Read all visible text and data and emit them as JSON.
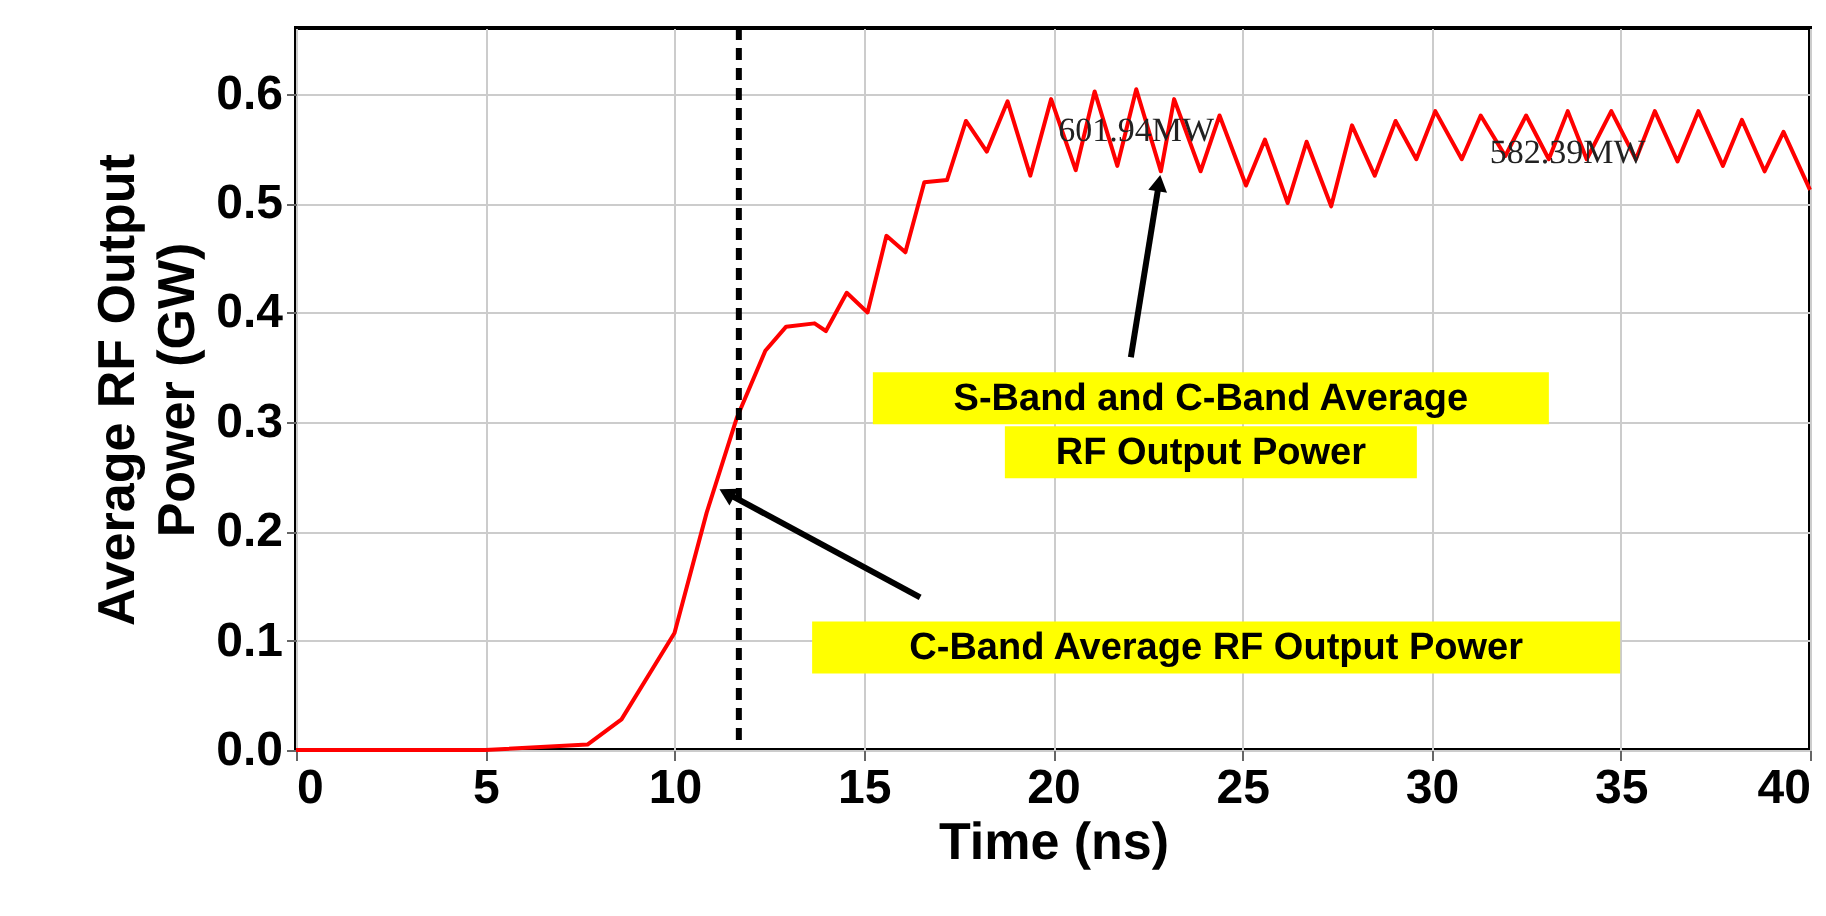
{
  "chart_data": {
    "type": "line",
    "xlabel": "Time (ns)",
    "ylabel": "Average RF Output\nPower (GW)",
    "xlim": [
      0,
      40
    ],
    "ylim": [
      0,
      0.66
    ],
    "xticks": [
      0,
      5,
      10,
      15,
      20,
      25,
      30,
      35,
      40
    ],
    "yticks": [
      {
        "value": 0,
        "label": "0.0"
      },
      0.1,
      0.2,
      0.3,
      0.4,
      0.5,
      0.6
    ],
    "grid": true,
    "marker": "none",
    "line_style": "solid",
    "series": [
      {
        "color": "#ff0000",
        "x": [
          0,
          5,
          7.7,
          8.6,
          10.0,
          10.85,
          11.65,
          12.4,
          12.95,
          13.7,
          14.0,
          14.55,
          15.1,
          15.6,
          16.1,
          16.6,
          17.2,
          17.7,
          18.25,
          18.8,
          19.4,
          19.95,
          20.6,
          21.1,
          21.7,
          22.2,
          22.85,
          23.2,
          23.9,
          24.4,
          25.1,
          25.6,
          26.2,
          26.7,
          27.35,
          27.9,
          28.5,
          29.05,
          29.6,
          30.1,
          30.8,
          31.3,
          31.95,
          32.5,
          33.1,
          33.6,
          34.1,
          34.75,
          35.4,
          35.9,
          36.5,
          37.05,
          37.7,
          38.2,
          38.8,
          39.3,
          40
        ],
        "values": [
          0,
          0,
          0.005,
          0.028,
          0.107,
          0.217,
          0.304,
          0.365,
          0.387,
          0.39,
          0.383,
          0.418,
          0.4,
          0.47,
          0.455,
          0.519,
          0.521,
          0.575,
          0.547,
          0.593,
          0.525,
          0.595,
          0.53,
          0.602,
          0.534,
          0.604,
          0.529,
          0.595,
          0.529,
          0.58,
          0.516,
          0.558,
          0.5,
          0.556,
          0.497,
          0.571,
          0.525,
          0.575,
          0.54,
          0.584,
          0.54,
          0.58,
          0.543,
          0.58,
          0.54,
          0.584,
          0.54,
          0.584,
          0.54,
          0.584,
          0.538,
          0.584,
          0.534,
          0.576,
          0.529,
          0.565,
          0.512
        ]
      }
    ],
    "ref_lines": [
      {
        "axis": "x",
        "value": 11.7,
        "color": "#000000",
        "line_style": "dashed"
      }
    ],
    "annotations": [
      {
        "text": "601.94MW",
        "x": 22.2,
        "y": 0.602
      },
      {
        "text": "582.39MW",
        "x": 33.6,
        "y": 0.582
      },
      {
        "text": "S-Band and C-Band Average\nRF Output Power",
        "x": 22.85,
        "y": 0.529
      },
      {
        "text": "C-Band Average RF Output Power",
        "x": 11.1,
        "y": 0.24
      }
    ]
  }
}
